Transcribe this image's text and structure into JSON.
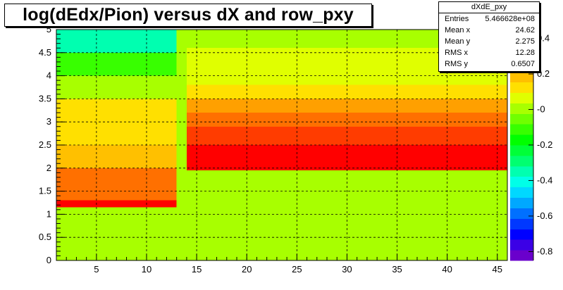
{
  "chart_data": {
    "type": "heatmap",
    "title": "log(dEdx/Pion) versus dX and row_pxy",
    "xlabel": "",
    "ylabel": "",
    "xlim": [
      1,
      46
    ],
    "ylim": [
      0,
      5
    ],
    "x_ticks": [
      "5",
      "10",
      "15",
      "20",
      "25",
      "30",
      "35",
      "40",
      "45"
    ],
    "y_ticks": [
      "0",
      "0.5",
      "1",
      "1.5",
      "2",
      "2.5",
      "3",
      "3.5",
      "4",
      "4.5",
      "5"
    ],
    "z_range": [
      -0.85,
      0.45
    ],
    "z_ticks": [
      "-0.8",
      "-0.6",
      "-0.4",
      "-0.2",
      "-0",
      "0.2",
      "0.4"
    ],
    "grid": true,
    "palette": [
      "#6a00cc",
      "#3b00e6",
      "#0000ff",
      "#0038ff",
      "#0070ff",
      "#00a8ff",
      "#00d8ff",
      "#00ffe8",
      "#00ffb0",
      "#00ff70",
      "#00ff38",
      "#00ff00",
      "#38ff00",
      "#70ff00",
      "#a8ff00",
      "#e0ff00",
      "#ffe000",
      "#ffc000",
      "#ffa000",
      "#ff7000",
      "#ff3c00",
      "#ff0000"
    ],
    "regions": [
      {
        "x": [
          1,
          13
        ],
        "y": [
          0,
          1.15
        ],
        "z": 0.0
      },
      {
        "x": [
          1,
          13
        ],
        "y": [
          1.15,
          1.3
        ],
        "z": 0.4
      },
      {
        "x": [
          1,
          13
        ],
        "y": [
          1.3,
          1.6
        ],
        "z": 0.33
      },
      {
        "x": [
          1,
          13
        ],
        "y": [
          1.6,
          2.0
        ],
        "z": 0.28
      },
      {
        "x": [
          1,
          13
        ],
        "y": [
          2.0,
          2.5
        ],
        "z": 0.2
      },
      {
        "x": [
          1,
          13
        ],
        "y": [
          2.5,
          3.0
        ],
        "z": 0.15
      },
      {
        "x": [
          1,
          13
        ],
        "y": [
          3.0,
          3.5
        ],
        "z": 0.1
      },
      {
        "x": [
          1,
          13
        ],
        "y": [
          3.5,
          4.0
        ],
        "z": 0.03
      },
      {
        "x": [
          1,
          13
        ],
        "y": [
          4.0,
          4.5
        ],
        "z": -0.12
      },
      {
        "x": [
          1,
          13
        ],
        "y": [
          4.5,
          5.0
        ],
        "z": -0.35
      },
      {
        "x": [
          13,
          14
        ],
        "y": [
          0,
          5.0
        ],
        "z": 0.0
      },
      {
        "x": [
          14,
          46
        ],
        "y": [
          0,
          1.95
        ],
        "z": 0.0
      },
      {
        "x": [
          14,
          46
        ],
        "y": [
          1.95,
          2.5
        ],
        "z": 0.42
      },
      {
        "x": [
          14,
          46
        ],
        "y": [
          2.5,
          2.9
        ],
        "z": 0.36
      },
      {
        "x": [
          14,
          46
        ],
        "y": [
          2.9,
          3.2
        ],
        "z": 0.3
      },
      {
        "x": [
          14,
          46
        ],
        "y": [
          3.2,
          3.5
        ],
        "z": 0.22
      },
      {
        "x": [
          14,
          46
        ],
        "y": [
          3.5,
          3.8
        ],
        "z": 0.15
      },
      {
        "x": [
          14,
          46
        ],
        "y": [
          3.8,
          4.2
        ],
        "z": 0.09
      },
      {
        "x": [
          14,
          46
        ],
        "y": [
          4.2,
          4.6
        ],
        "z": 0.04
      },
      {
        "x": [
          14,
          46
        ],
        "y": [
          4.6,
          5.0
        ],
        "z": 0.01
      }
    ]
  },
  "stats": {
    "name": "dXdE_pxy",
    "rows": [
      {
        "label": "Entries",
        "value": "5.466628e+08"
      },
      {
        "label": "Mean x",
        "value": "24.62"
      },
      {
        "label": "Mean y",
        "value": "2.275"
      },
      {
        "label": "RMS x",
        "value": "12.28"
      },
      {
        "label": "RMS y",
        "value": "0.6507"
      }
    ]
  }
}
